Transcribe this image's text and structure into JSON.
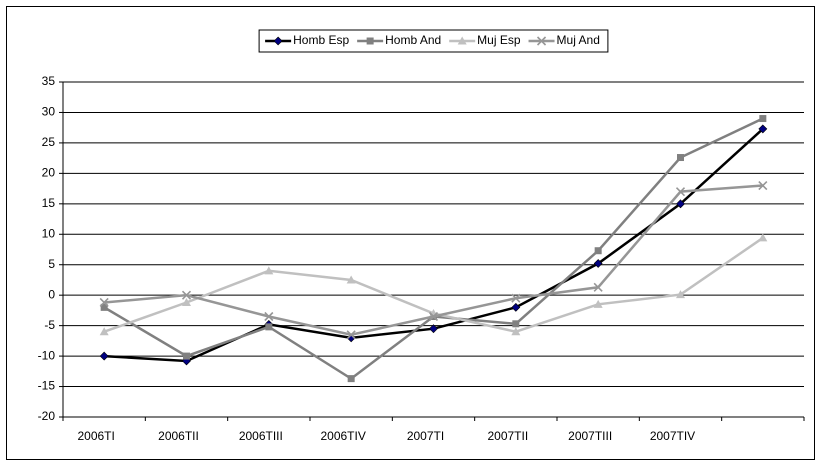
{
  "chart_data": {
    "type": "line",
    "categories": [
      "2006TI",
      "2006TII",
      "2006TIII",
      "2006TIV",
      "2007TI",
      "2007TII",
      "2007TIII",
      "2007TIV",
      null
    ],
    "series": [
      {
        "name": "Homb Esp",
        "color": "#000000",
        "marker": "diamond",
        "marker_color": "#000080",
        "values": [
          -10,
          -10.8,
          -4.8,
          -7,
          -5.5,
          -2,
          5.2,
          15,
          27.3
        ]
      },
      {
        "name": "Homb And",
        "color": "#808080",
        "marker": "square",
        "marker_color": "#808080",
        "values": [
          -2,
          -10,
          -5.2,
          -13.7,
          -3.5,
          -4.7,
          7.3,
          22.6,
          29
        ]
      },
      {
        "name": "Muj Esp",
        "color": "#c0c0c0",
        "marker": "triangle",
        "marker_color": "#c0c0c0",
        "values": [
          -6,
          -1.2,
          4,
          2.5,
          -3,
          -6,
          -1.5,
          0.1,
          9.4
        ]
      },
      {
        "name": "Muj And",
        "color": "#969696",
        "marker": "x",
        "marker_color": "#969696",
        "values": [
          -1.2,
          0,
          -3.5,
          -6.5,
          -3.5,
          -0.5,
          1.3,
          17,
          18
        ]
      }
    ],
    "ylim": [
      -20,
      35
    ],
    "yticks": [
      -20,
      -15,
      -10,
      -5,
      0,
      5,
      10,
      15,
      20,
      25,
      30,
      35
    ],
    "grid": true,
    "legend": "top"
  }
}
